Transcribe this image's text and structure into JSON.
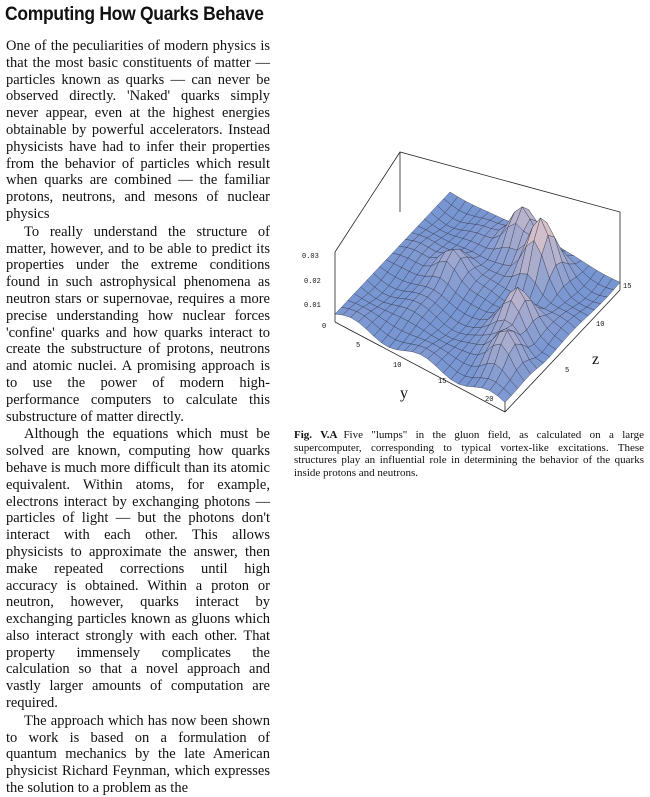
{
  "article": {
    "title": "Computing How Quarks Behave",
    "paragraphs": [
      "One of the peculiarities of modern physics is that the most basic constituents of matter — particles known as quarks — can never be observed directly. 'Naked' quarks simply never appear, even at the highest energies obtainable by powerful accelerators. Instead physicists have had to infer their properties from the behavior of particles which result when quarks are combined — the familiar protons, neutrons, and mesons of nuclear physics",
      "To really understand the structure of matter, however, and to be able to predict its properties under the extreme conditions found in such astrophysical phenomena as neutron stars or supernovae, requires a more precise understanding how nuclear forces 'confine' quarks and how quarks interact to create the substructure of protons, neutrons and atomic nuclei. A promising approach is to use the power of modern high-performance computers to calculate this substructure of matter directly.",
      "Although the equations which must be solved are known, computing how quarks behave is much more difficult than its atomic equivalent. Within atoms, for example, electrons interact by exchanging photons — particles of light — but the photons don't interact with each other. This allows physicists to approximate the answer, then make repeated corrections until high accuracy is obtained. Within a proton or neutron, however, quarks interact by exchanging particles known as gluons which also interact strongly with each other. That property immensely complicates the calculation so that a novel approach and vastly larger amounts of computation are required.",
      "The approach which has now been shown to work is based on a formulation of quantum mechanics by the late American physicist Richard Feynman, which expresses the solution to a problem as the"
    ]
  },
  "figure": {
    "label": "Fig. V.A",
    "caption": "Five \"lumps\" in the gluon field, as calculated on a large supercomputer, corresponding to typical vortex-like excitations. These structures play an influential role in determining the behavior of the quarks inside protons and neutrons.",
    "axes": {
      "vertical_ticks": [
        "0",
        "0.01",
        "0.02",
        "0.03"
      ],
      "y_label": "y",
      "y_ticks": [
        "5",
        "10",
        "15",
        "20"
      ],
      "z_label": "z",
      "z_ticks": [
        "5",
        "10",
        "15"
      ]
    }
  }
}
